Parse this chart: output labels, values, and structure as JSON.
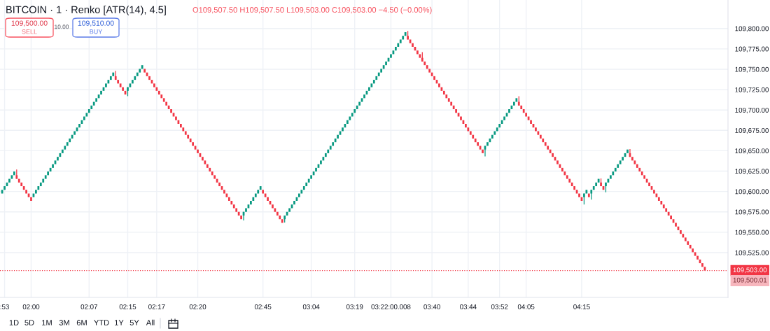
{
  "chart_data": {
    "type": "candlestick",
    "title": "BITCOIN · 1 · Renko [ATR(14), 4.5]",
    "subtitle": "O109,507.50 H109,507.50 L109,503.00 C109,503.00 −4.50 (−0.00%)",
    "categories": [
      null,
      ":53",
      null,
      null,
      null,
      null,
      null,
      null,
      null,
      null,
      null,
      null,
      "02:00",
      null,
      null,
      null,
      null,
      null,
      null,
      null,
      null,
      null,
      null,
      null,
      null,
      null,
      null,
      null,
      null,
      null,
      null,
      null,
      null,
      null,
      null,
      null,
      "02:07",
      null,
      null,
      null,
      null,
      null,
      null,
      null,
      null,
      null,
      null,
      null,
      null,
      null,
      null,
      null,
      "02:15",
      null,
      null,
      null,
      null,
      null,
      null,
      null,
      null,
      null,
      null,
      null,
      "02:17",
      null,
      null,
      null,
      null,
      null,
      null,
      null,
      null,
      null,
      null,
      null,
      null,
      null,
      null,
      null,
      null,
      "02:20",
      null,
      null,
      null,
      null,
      null,
      null,
      null,
      null,
      null,
      null,
      null,
      null,
      null,
      null,
      null,
      null,
      null,
      null,
      null,
      null,
      null,
      null,
      null,
      null,
      null,
      null,
      "02:45",
      null,
      null,
      null,
      null,
      null,
      null,
      null,
      null,
      null,
      null,
      null,
      null,
      null,
      null,
      null,
      null,
      null,
      null,
      null,
      "03:04",
      null,
      null,
      null,
      null,
      null,
      null,
      null,
      null,
      null,
      null,
      null,
      null,
      null,
      null,
      null,
      null,
      null,
      "03:19",
      null,
      null,
      null,
      null,
      null,
      null,
      null,
      null,
      null,
      null,
      null,
      null,
      null,
      null,
      "03:22:00.008",
      null,
      null,
      null,
      null,
      null,
      null,
      null,
      null,
      null,
      null,
      null,
      null,
      null,
      null,
      null,
      null,
      "03:40",
      null,
      null,
      null,
      null,
      null,
      null,
      null,
      null,
      null,
      null,
      null,
      null,
      null,
      null,
      "03:44",
      null,
      null,
      null,
      null,
      null,
      null,
      null,
      null,
      null,
      null,
      null,
      null,
      "03:52",
      null,
      null,
      null,
      null,
      null,
      null,
      null,
      null,
      null,
      null,
      "04:05",
      null,
      null,
      null,
      null,
      null,
      null,
      null,
      null,
      null,
      null,
      null,
      null,
      null,
      null,
      null,
      null,
      null,
      null,
      null,
      null,
      null,
      null,
      "04:15",
      null,
      null,
      null,
      null,
      null,
      null,
      null,
      null,
      null,
      null,
      null,
      null,
      null,
      null,
      null,
      null,
      null,
      null,
      null,
      null,
      null,
      null,
      null,
      null,
      null,
      null,
      null,
      null,
      null,
      null,
      null,
      null,
      null,
      null,
      null,
      null,
      null,
      null,
      null,
      null,
      null,
      null,
      null,
      null,
      null,
      null,
      null,
      null,
      null,
      null,
      null
    ],
    "ohlc": [
      [
        109597.5,
        109602,
        109597.5,
        109602
      ],
      [
        109602,
        109606.5,
        109602,
        109606.5
      ],
      [
        109606.5,
        109611,
        109606.5,
        109611
      ],
      [
        109611,
        109615.5,
        109611,
        109615.5
      ],
      [
        109615.5,
        109620,
        109615.5,
        109620
      ],
      [
        109620,
        109624.5,
        109620,
        109624.5
      ],
      [
        109620,
        109627,
        109615.5,
        109615.5
      ],
      [
        109615.5,
        109615.5,
        109611,
        109611
      ],
      [
        109611,
        109611,
        109606.5,
        109606.5
      ],
      [
        109606.5,
        109606.5,
        109602,
        109602
      ],
      [
        109602,
        109602,
        109597.5,
        109597.5
      ],
      [
        109597.5,
        109597.5,
        109593,
        109593
      ],
      [
        109593,
        109593,
        109588.5,
        109588.5
      ],
      [
        109593,
        109597.5,
        109593,
        109597.5
      ],
      [
        109597.5,
        109602,
        109597.5,
        109602
      ],
      [
        109602,
        109606.5,
        109602,
        109606.5
      ],
      [
        109606.5,
        109611,
        109606.5,
        109611
      ],
      [
        109611,
        109615.5,
        109611,
        109615.5
      ],
      [
        109615.5,
        109620,
        109615.5,
        109620
      ],
      [
        109620,
        109624.5,
        109620,
        109624.5
      ],
      [
        109624.5,
        109629,
        109624.5,
        109629
      ],
      [
        109629,
        109633.5,
        109629,
        109633.5
      ],
      [
        109633.5,
        109638,
        109633.5,
        109638
      ],
      [
        109638,
        109642.5,
        109638,
        109642.5
      ],
      [
        109642.5,
        109647,
        109642.5,
        109647
      ],
      [
        109647,
        109651.5,
        109647,
        109651.5
      ],
      [
        109651.5,
        109656,
        109651.5,
        109656
      ],
      [
        109656,
        109660.5,
        109656,
        109660.5
      ],
      [
        109660.5,
        109665,
        109660.5,
        109665
      ],
      [
        109665,
        109669.5,
        109665,
        109669.5
      ],
      [
        109669.5,
        109674,
        109669.5,
        109674
      ],
      [
        109674,
        109678.5,
        109674,
        109678.5
      ],
      [
        109678.5,
        109683,
        109678.5,
        109683
      ],
      [
        109683,
        109687.5,
        109683,
        109687.5
      ],
      [
        109687.5,
        109692,
        109687.5,
        109692
      ],
      [
        109692,
        109696.5,
        109692,
        109696.5
      ],
      [
        109696.5,
        109701,
        109696.5,
        109701
      ],
      [
        109701,
        109705.5,
        109701,
        109705.5
      ],
      [
        109705.5,
        109710,
        109705.5,
        109710
      ],
      [
        109710,
        109714.5,
        109710,
        109714.5
      ],
      [
        109714.5,
        109719,
        109714.5,
        109719
      ],
      [
        109719,
        109723.5,
        109719,
        109723.5
      ],
      [
        109723.5,
        109728,
        109723.5,
        109728
      ],
      [
        109728,
        109732.5,
        109728,
        109732.5
      ],
      [
        109732.5,
        109737,
        109732.5,
        109737
      ],
      [
        109737,
        109741.5,
        109737,
        109741.5
      ],
      [
        109741.5,
        109746,
        109741.5,
        109746
      ],
      [
        109741.5,
        109748,
        109737,
        109737
      ],
      [
        109737,
        109737,
        109732.5,
        109732.5
      ],
      [
        109732.5,
        109732.5,
        109728,
        109728
      ],
      [
        109728,
        109728,
        109723.5,
        109723.5
      ],
      [
        109723.5,
        109723.5,
        109719,
        109719
      ],
      [
        109723.5,
        109728,
        109717,
        109728
      ],
      [
        109728,
        109732.5,
        109728,
        109732.5
      ],
      [
        109732.5,
        109737,
        109732.5,
        109737
      ],
      [
        109737,
        109741.5,
        109737,
        109741.5
      ],
      [
        109741.5,
        109746,
        109741.5,
        109746
      ],
      [
        109746,
        109750.5,
        109746,
        109750.5
      ],
      [
        109750.5,
        109755,
        109750.5,
        109755
      ],
      [
        109750.5,
        109750.5,
        109746,
        109746
      ],
      [
        109746,
        109746,
        109741.5,
        109741.5
      ],
      [
        109741.5,
        109741.5,
        109737,
        109737
      ],
      [
        109737,
        109737,
        109732.5,
        109732.5
      ],
      [
        109732.5,
        109732.5,
        109728,
        109728
      ],
      [
        109728,
        109728,
        109723.5,
        109723.5
      ],
      [
        109723.5,
        109723.5,
        109719,
        109719
      ],
      [
        109719,
        109719,
        109714.5,
        109714.5
      ],
      [
        109714.5,
        109714.5,
        109710,
        109710
      ],
      [
        109710,
        109710,
        109705.5,
        109705.5
      ],
      [
        109705.5,
        109705.5,
        109701,
        109701
      ],
      [
        109701,
        109701,
        109696.5,
        109696.5
      ],
      [
        109696.5,
        109696.5,
        109692,
        109692
      ],
      [
        109692,
        109692,
        109687.5,
        109687.5
      ],
      [
        109687.5,
        109687.5,
        109683,
        109683
      ],
      [
        109683,
        109683,
        109678.5,
        109678.5
      ],
      [
        109678.5,
        109678.5,
        109674,
        109674
      ],
      [
        109674,
        109674,
        109669.5,
        109669.5
      ],
      [
        109669.5,
        109669.5,
        109665,
        109665
      ],
      [
        109665,
        109665,
        109660.5,
        109660.5
      ],
      [
        109660.5,
        109660.5,
        109656,
        109656
      ],
      [
        109656,
        109656,
        109651.5,
        109651.5
      ],
      [
        109651.5,
        109651.5,
        109647,
        109647
      ],
      [
        109647,
        109647,
        109642.5,
        109642.5
      ],
      [
        109642.5,
        109642.5,
        109638,
        109638
      ],
      [
        109638,
        109638,
        109633.5,
        109633.5
      ],
      [
        109633.5,
        109633.5,
        109629,
        109629
      ],
      [
        109629,
        109629,
        109624.5,
        109624.5
      ],
      [
        109624.5,
        109624.5,
        109620,
        109620
      ],
      [
        109620,
        109620,
        109615.5,
        109615.5
      ],
      [
        109615.5,
        109615.5,
        109611,
        109611
      ],
      [
        109611,
        109611,
        109606.5,
        109606.5
      ],
      [
        109606.5,
        109606.5,
        109602,
        109602
      ],
      [
        109602,
        109602,
        109597.5,
        109597.5
      ],
      [
        109597.5,
        109597.5,
        109593,
        109593
      ],
      [
        109593,
        109593,
        109588.5,
        109588.5
      ],
      [
        109588.5,
        109588.5,
        109584,
        109584
      ],
      [
        109584,
        109584,
        109579.5,
        109579.5
      ],
      [
        109579.5,
        109579.5,
        109575,
        109575
      ],
      [
        109575,
        109575,
        109570.5,
        109570.5
      ],
      [
        109570.5,
        109570.5,
        109566,
        109566
      ],
      [
        109570.5,
        109575,
        109564.5,
        109575
      ],
      [
        109575,
        109579.5,
        109575,
        109579.5
      ],
      [
        109579.5,
        109584,
        109579.5,
        109584
      ],
      [
        109584,
        109588.5,
        109584,
        109588.5
      ],
      [
        109588.5,
        109593,
        109588.5,
        109593
      ],
      [
        109593,
        109597.5,
        109593,
        109597.5
      ],
      [
        109597.5,
        109602,
        109597.5,
        109602
      ],
      [
        109602,
        109606.5,
        109602,
        109606.5
      ],
      [
        109602,
        109602,
        109597.5,
        109597.5
      ],
      [
        109597.5,
        109597.5,
        109593,
        109593
      ],
      [
        109593,
        109593,
        109588.5,
        109588.5
      ],
      [
        109588.5,
        109588.5,
        109584,
        109584
      ],
      [
        109584,
        109584,
        109579.5,
        109579.5
      ],
      [
        109579.5,
        109579.5,
        109575,
        109575
      ],
      [
        109575,
        109575,
        109570.5,
        109570.5
      ],
      [
        109570.5,
        109570.5,
        109566,
        109566
      ],
      [
        109566,
        109566,
        109561.5,
        109561.5
      ],
      [
        109566,
        109570.5,
        109562,
        109570.5
      ],
      [
        109570.5,
        109575,
        109570.5,
        109575
      ],
      [
        109575,
        109579.5,
        109575,
        109579.5
      ],
      [
        109579.5,
        109584,
        109579.5,
        109584
      ],
      [
        109584,
        109588.5,
        109584,
        109588.5
      ],
      [
        109588.5,
        109593,
        109588.5,
        109593
      ],
      [
        109593,
        109597.5,
        109593,
        109597.5
      ],
      [
        109597.5,
        109602,
        109597.5,
        109602
      ],
      [
        109602,
        109606.5,
        109602,
        109606.5
      ],
      [
        109606.5,
        109611,
        109606.5,
        109611
      ],
      [
        109611,
        109615.5,
        109611,
        109615.5
      ],
      [
        109615.5,
        109620,
        109615.5,
        109620
      ],
      [
        109620,
        109624.5,
        109620,
        109624.5
      ],
      [
        109624.5,
        109629,
        109624.5,
        109629
      ],
      [
        109629,
        109633.5,
        109629,
        109633.5
      ],
      [
        109633.5,
        109638,
        109633.5,
        109638
      ],
      [
        109638,
        109642.5,
        109638,
        109642.5
      ],
      [
        109642.5,
        109647,
        109642.5,
        109647
      ],
      [
        109647,
        109651.5,
        109647,
        109651.5
      ],
      [
        109651.5,
        109656,
        109651.5,
        109656
      ],
      [
        109656,
        109660.5,
        109656,
        109660.5
      ],
      [
        109660.5,
        109665,
        109660.5,
        109665
      ],
      [
        109665,
        109669.5,
        109665,
        109669.5
      ],
      [
        109669.5,
        109674,
        109669.5,
        109674
      ],
      [
        109674,
        109678.5,
        109674,
        109678.5
      ],
      [
        109678.5,
        109683,
        109678.5,
        109683
      ],
      [
        109683,
        109687.5,
        109683,
        109687.5
      ],
      [
        109687.5,
        109692,
        109687.5,
        109692
      ],
      [
        109692,
        109696.5,
        109692,
        109696.5
      ],
      [
        109696.5,
        109701,
        109696.5,
        109701
      ],
      [
        109701,
        109705.5,
        109701,
        109705.5
      ],
      [
        109705.5,
        109710,
        109705.5,
        109710
      ],
      [
        109710,
        109714.5,
        109710,
        109714.5
      ],
      [
        109714.5,
        109719,
        109714.5,
        109719
      ],
      [
        109719,
        109723.5,
        109719,
        109723.5
      ],
      [
        109723.5,
        109728,
        109723.5,
        109728
      ],
      [
        109728,
        109732.5,
        109728,
        109732.5
      ],
      [
        109732.5,
        109737,
        109732.5,
        109737
      ],
      [
        109737,
        109741.5,
        109737,
        109741.5
      ],
      [
        109741.5,
        109746,
        109741.5,
        109746
      ],
      [
        109746,
        109750.5,
        109746,
        109750.5
      ],
      [
        109750.5,
        109755,
        109750.5,
        109755
      ],
      [
        109755,
        109759.5,
        109755,
        109759.5
      ],
      [
        109759.5,
        109764,
        109759.5,
        109764
      ],
      [
        109764,
        109768.5,
        109764,
        109768.5
      ],
      [
        109768.5,
        109773,
        109768.5,
        109773
      ],
      [
        109773,
        109777.5,
        109773,
        109777.5
      ],
      [
        109777.5,
        109782,
        109777.5,
        109782
      ],
      [
        109782,
        109786.5,
        109782,
        109786.5
      ],
      [
        109786.5,
        109791,
        109786.5,
        109791
      ],
      [
        109791,
        109795.5,
        109791,
        109795.5
      ],
      [
        109791,
        109797,
        109786.5,
        109786.5
      ],
      [
        109786.5,
        109786.5,
        109782,
        109782
      ],
      [
        109782,
        109782,
        109777.5,
        109777.5
      ],
      [
        109777.5,
        109777.5,
        109773,
        109773
      ],
      [
        109773,
        109773,
        109768.5,
        109768.5
      ],
      [
        109768.5,
        109768.5,
        109764,
        109764
      ],
      [
        109764,
        109771,
        109759.5,
        109759.5
      ],
      [
        109759.5,
        109759.5,
        109755,
        109755
      ],
      [
        109755,
        109755,
        109750.5,
        109750.5
      ],
      [
        109750.5,
        109750.5,
        109746,
        109746
      ],
      [
        109746,
        109746,
        109741.5,
        109741.5
      ],
      [
        109741.5,
        109741.5,
        109737,
        109737
      ],
      [
        109737,
        109737,
        109732.5,
        109732.5
      ],
      [
        109732.5,
        109732.5,
        109728,
        109728
      ],
      [
        109728,
        109728,
        109723.5,
        109723.5
      ],
      [
        109723.5,
        109723.5,
        109719,
        109719
      ],
      [
        109719,
        109719,
        109714.5,
        109714.5
      ],
      [
        109714.5,
        109714.5,
        109710,
        109710
      ],
      [
        109710,
        109710,
        109705.5,
        109705.5
      ],
      [
        109705.5,
        109705.5,
        109701,
        109701
      ],
      [
        109701,
        109701,
        109696.5,
        109696.5
      ],
      [
        109696.5,
        109696.5,
        109692,
        109692
      ],
      [
        109692,
        109692,
        109687.5,
        109687.5
      ],
      [
        109687.5,
        109687.5,
        109683,
        109683
      ],
      [
        109683,
        109683,
        109678.5,
        109678.5
      ],
      [
        109678.5,
        109678.5,
        109674,
        109674
      ],
      [
        109674,
        109674,
        109669.5,
        109669.5
      ],
      [
        109669.5,
        109669.5,
        109665,
        109665
      ],
      [
        109665,
        109665,
        109660.5,
        109660.5
      ],
      [
        109660.5,
        109660.5,
        109656,
        109656
      ],
      [
        109656,
        109656,
        109651.5,
        109651.5
      ],
      [
        109651.5,
        109651.5,
        109647,
        109647
      ],
      [
        109651.5,
        109656,
        109643,
        109656
      ],
      [
        109656,
        109660.5,
        109656,
        109660.5
      ],
      [
        109660.5,
        109665,
        109660.5,
        109665
      ],
      [
        109665,
        109669.5,
        109665,
        109669.5
      ],
      [
        109669.5,
        109674,
        109669.5,
        109674
      ],
      [
        109674,
        109678.5,
        109674,
        109678.5
      ],
      [
        109678.5,
        109683,
        109678.5,
        109683
      ],
      [
        109683,
        109687.5,
        109683,
        109687.5
      ],
      [
        109687.5,
        109692,
        109687.5,
        109692
      ],
      [
        109692,
        109696.5,
        109692,
        109696.5
      ],
      [
        109696.5,
        109701,
        109696.5,
        109701
      ],
      [
        109701,
        109705.5,
        109701,
        109705.5
      ],
      [
        109705.5,
        109710,
        109705.5,
        109710
      ],
      [
        109710,
        109714.5,
        109710,
        109714.5
      ],
      [
        109710,
        109717,
        109705.5,
        109705.5
      ],
      [
        109705.5,
        109705.5,
        109701,
        109701
      ],
      [
        109701,
        109701,
        109696.5,
        109696.5
      ],
      [
        109696.5,
        109696.5,
        109692,
        109692
      ],
      [
        109692,
        109692,
        109687.5,
        109687.5
      ],
      [
        109687.5,
        109687.5,
        109683,
        109683
      ],
      [
        109683,
        109683,
        109678.5,
        109678.5
      ],
      [
        109678.5,
        109678.5,
        109674,
        109674
      ],
      [
        109674,
        109674,
        109669.5,
        109669.5
      ],
      [
        109669.5,
        109669.5,
        109665,
        109665
      ],
      [
        109665,
        109665,
        109660.5,
        109660.5
      ],
      [
        109660.5,
        109660.5,
        109656,
        109656
      ],
      [
        109656,
        109656,
        109651.5,
        109651.5
      ],
      [
        109651.5,
        109651.5,
        109647,
        109647
      ],
      [
        109647,
        109647,
        109642.5,
        109642.5
      ],
      [
        109642.5,
        109642.5,
        109638,
        109638
      ],
      [
        109638,
        109638,
        109633.5,
        109633.5
      ],
      [
        109633.5,
        109633.5,
        109629,
        109629
      ],
      [
        109629,
        109629,
        109624.5,
        109624.5
      ],
      [
        109624.5,
        109624.5,
        109620,
        109620
      ],
      [
        109620,
        109620,
        109615.5,
        109615.5
      ],
      [
        109615.5,
        109615.5,
        109611,
        109611
      ],
      [
        109611,
        109611,
        109606.5,
        109606.5
      ],
      [
        109606.5,
        109606.5,
        109602,
        109602
      ],
      [
        109602,
        109602,
        109597.5,
        109597.5
      ],
      [
        109597.5,
        109597.5,
        109593,
        109593
      ],
      [
        109593,
        109593,
        109588.5,
        109588.5
      ],
      [
        109593,
        109597.5,
        109584,
        109597.5
      ],
      [
        109597.5,
        109602,
        109597.5,
        109602
      ],
      [
        109597.5,
        109597.5,
        109593,
        109593
      ],
      [
        109597.5,
        109602,
        109590,
        109602
      ],
      [
        109602,
        109606.5,
        109602,
        109606.5
      ],
      [
        109606.5,
        109611,
        109606.5,
        109611
      ],
      [
        109611,
        109615.5,
        109611,
        109615.5
      ],
      [
        109611,
        109616,
        109606.5,
        109606.5
      ],
      [
        109606.5,
        109606.5,
        109602,
        109602
      ],
      [
        109606.5,
        109611,
        109599,
        109611
      ],
      [
        109611,
        109615.5,
        109611,
        109615.5
      ],
      [
        109615.5,
        109620,
        109615.5,
        109620
      ],
      [
        109620,
        109624.5,
        109620,
        109624.5
      ],
      [
        109624.5,
        109629,
        109624.5,
        109629
      ],
      [
        109629,
        109633.5,
        109629,
        109633.5
      ],
      [
        109633.5,
        109638,
        109633.5,
        109638
      ],
      [
        109638,
        109642.5,
        109638,
        109642.5
      ],
      [
        109642.5,
        109647,
        109642.5,
        109647
      ],
      [
        109647,
        109651.5,
        109647,
        109651.5
      ],
      [
        109647,
        109652,
        109642.5,
        109642.5
      ],
      [
        109642.5,
        109642.5,
        109638,
        109638
      ],
      [
        109638,
        109638,
        109633.5,
        109633.5
      ],
      [
        109633.5,
        109633.5,
        109629,
        109629
      ],
      [
        109629,
        109629,
        109624.5,
        109624.5
      ],
      [
        109624.5,
        109624.5,
        109620,
        109620
      ],
      [
        109620,
        109620,
        109615.5,
        109615.5
      ],
      [
        109615.5,
        109615.5,
        109611,
        109611
      ],
      [
        109611,
        109611,
        109606.5,
        109606.5
      ],
      [
        109606.5,
        109606.5,
        109602,
        109602
      ],
      [
        109602,
        109602,
        109597.5,
        109597.5
      ],
      [
        109597.5,
        109597.5,
        109593,
        109593
      ],
      [
        109593,
        109593,
        109588.5,
        109588.5
      ],
      [
        109588.5,
        109588.5,
        109584,
        109584
      ],
      [
        109584,
        109584,
        109579.5,
        109579.5
      ],
      [
        109579.5,
        109579.5,
        109575,
        109575
      ],
      [
        109575,
        109575,
        109570.5,
        109570.5
      ],
      [
        109570.5,
        109570.5,
        109566,
        109566
      ],
      [
        109566,
        109566,
        109561.5,
        109561.5
      ],
      [
        109561.5,
        109561.5,
        109557,
        109557
      ],
      [
        109557,
        109557,
        109552.5,
        109552.5
      ],
      [
        109552.5,
        109552.5,
        109548,
        109548
      ],
      [
        109548,
        109548,
        109543.5,
        109543.5
      ],
      [
        109543.5,
        109543.5,
        109539,
        109539
      ],
      [
        109539,
        109539,
        109534.5,
        109534.5
      ],
      [
        109534.5,
        109534.5,
        109530,
        109530
      ],
      [
        109530,
        109530,
        109525.5,
        109525.5
      ],
      [
        109525.5,
        109525.5,
        109521,
        109521
      ],
      [
        109521,
        109521,
        109516.5,
        109516.5
      ],
      [
        109516.5,
        109516.5,
        109512,
        109512
      ],
      [
        109512,
        109512,
        109507.5,
        109507.5
      ],
      [
        109507.5,
        109507.5,
        109503,
        109503
      ]
    ],
    "ylim": [
      109470,
      109835
    ],
    "yticks": [
      {
        "value": 109525,
        "label": "109,525.00"
      },
      {
        "value": 109550,
        "label": "109,550.00"
      },
      {
        "value": 109575,
        "label": "109,575.00"
      },
      {
        "value": 109600,
        "label": "109,600.00"
      },
      {
        "value": 109625,
        "label": "109,625.00"
      },
      {
        "value": 109650,
        "label": "109,650.00"
      },
      {
        "value": 109675,
        "label": "109,675.00"
      },
      {
        "value": 109700,
        "label": "109,700.00"
      },
      {
        "value": 109725,
        "label": "109,725.00"
      },
      {
        "value": 109750,
        "label": "109,750.00"
      },
      {
        "value": 109775,
        "label": "109,775.00"
      },
      {
        "value": 109800,
        "label": "109,800.00"
      }
    ],
    "grid": true,
    "ref_lines": [
      {
        "axis": "y",
        "value": 109503,
        "label": "109,503.00",
        "color": "#f23645",
        "line_style": "dotted"
      }
    ],
    "annotations": [
      "109,500.00",
      "SELL",
      "10.00",
      "109,510.00",
      "BUY",
      "1D",
      "5D",
      "1M",
      "3M",
      "6M",
      "YTD",
      "1Y",
      "5Y",
      "All",
      "109,500.01"
    ]
  }
}
